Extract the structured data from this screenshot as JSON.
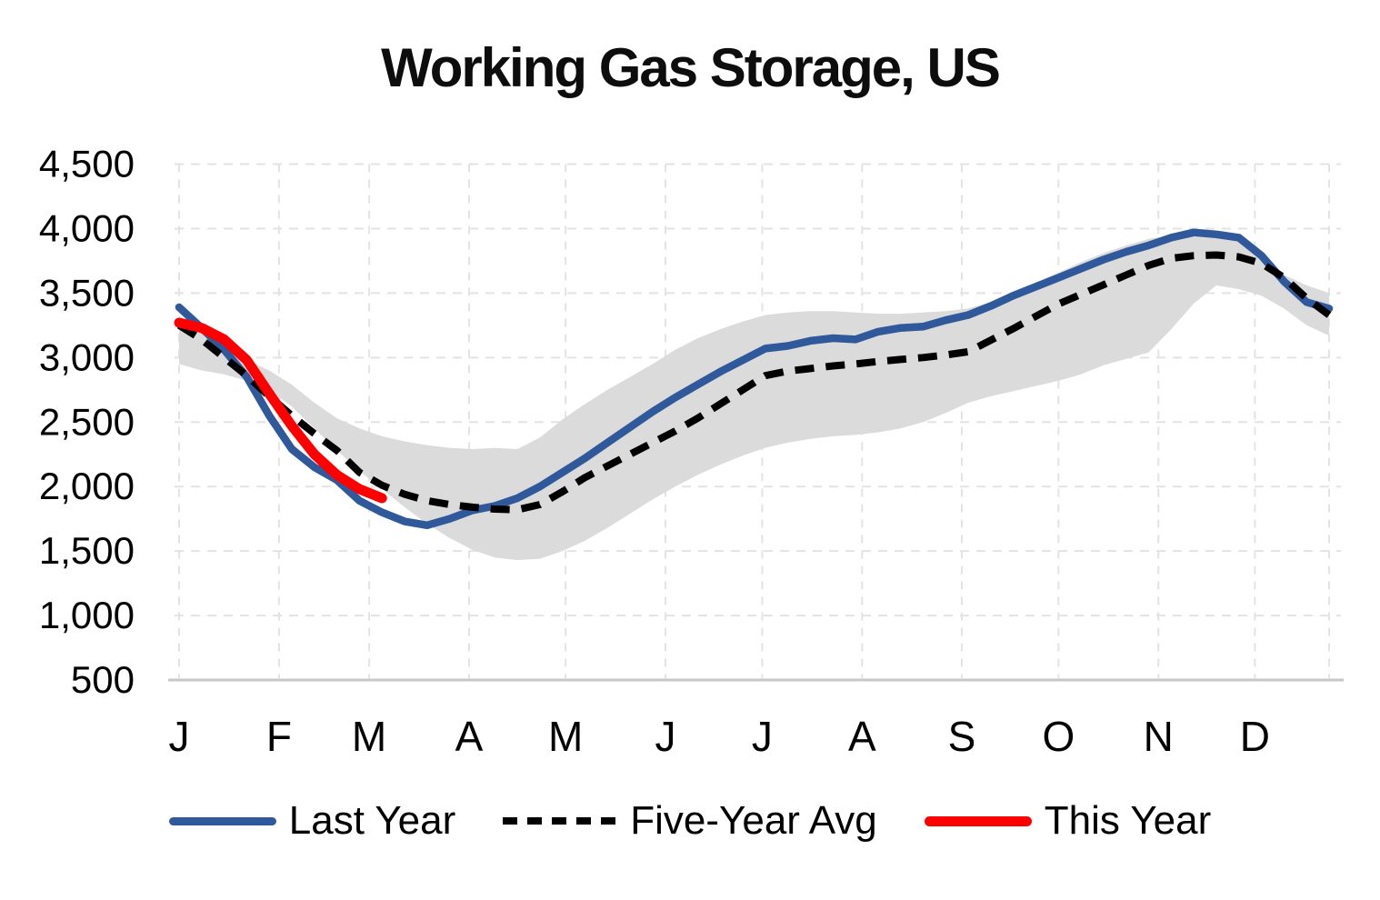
{
  "title": "Working Gas Storage, US",
  "colors": {
    "last_year": "#30599B",
    "five_year_avg": "#000000",
    "this_year": "#FF0000",
    "range_band": "#DBDBDB",
    "gridline": "#E3E3E3",
    "baseline": "#C7C7C7",
    "text": "#000000"
  },
  "legend": {
    "items": [
      {
        "label": "Last Year",
        "color": "#30599B",
        "style": "solid"
      },
      {
        "label": "Five-Year Avg",
        "color": "#000000",
        "style": "dashed"
      },
      {
        "label": "This Year",
        "color": "#FF0000",
        "style": "solid"
      }
    ]
  },
  "chart_data": {
    "type": "line",
    "title": "Working Gas Storage, US",
    "x_unit": "week-of-year",
    "xlabel": "",
    "ylabel": "",
    "ylim": [
      500,
      4500
    ],
    "ytick_values": [
      500,
      1000,
      1500,
      2000,
      2500,
      3000,
      3500,
      4000,
      4500
    ],
    "ytick_labels": [
      "500",
      "1,000",
      "1,500",
      "2,000",
      "2,500",
      "3,000",
      "3,500",
      "4,000",
      "4,500"
    ],
    "month_labels": [
      "J",
      "F",
      "M",
      "A",
      "M",
      "J",
      "J",
      "A",
      "S",
      "O",
      "N",
      "D"
    ],
    "grid": true,
    "legend_position": "bottom",
    "series": [
      {
        "name": "Last Year",
        "style": "solid",
        "color": "#30599B",
        "start_week": 1,
        "values": [
          3390,
          3230,
          3060,
          2850,
          2550,
          2290,
          2150,
          2050,
          1890,
          1800,
          1730,
          1700,
          1750,
          1815,
          1850,
          1910,
          2000,
          2110,
          2220,
          2340,
          2460,
          2580,
          2690,
          2790,
          2890,
          2980,
          3070,
          3090,
          3130,
          3150,
          3140,
          3200,
          3230,
          3240,
          3290,
          3330,
          3400,
          3480,
          3550,
          3620,
          3690,
          3760,
          3820,
          3870,
          3930,
          3970,
          3955,
          3930,
          3790,
          3590,
          3430,
          3380
        ]
      },
      {
        "name": "Five-Year Avg",
        "style": "dashed",
        "color": "#000000",
        "start_week": 1,
        "values": [
          3250,
          3140,
          3000,
          2860,
          2700,
          2550,
          2410,
          2280,
          2110,
          2010,
          1940,
          1890,
          1860,
          1840,
          1825,
          1820,
          1860,
          1960,
          2070,
          2160,
          2250,
          2340,
          2430,
          2530,
          2640,
          2750,
          2860,
          2895,
          2915,
          2935,
          2950,
          2970,
          2985,
          3000,
          3020,
          3045,
          3135,
          3225,
          3320,
          3415,
          3490,
          3565,
          3640,
          3715,
          3770,
          3790,
          3795,
          3780,
          3730,
          3620,
          3460,
          3330
        ]
      },
      {
        "name": "This Year",
        "style": "solid",
        "color": "#FF0000",
        "start_week": 1,
        "values": [
          3270,
          3230,
          3140,
          2980,
          2720,
          2470,
          2250,
          2090,
          1980,
          1910
        ]
      }
    ],
    "range_band": {
      "color": "#DBDBDB",
      "start_week": 1,
      "lower": [
        2950,
        2900,
        2870,
        2820,
        2750,
        2620,
        2450,
        2280,
        2120,
        1980,
        1840,
        1710,
        1600,
        1510,
        1450,
        1430,
        1440,
        1500,
        1580,
        1680,
        1790,
        1900,
        2000,
        2090,
        2170,
        2240,
        2300,
        2340,
        2370,
        2390,
        2400,
        2420,
        2450,
        2500,
        2570,
        2650,
        2700,
        2740,
        2780,
        2820,
        2870,
        2940,
        2990,
        3040,
        3220,
        3420,
        3560,
        3530,
        3480,
        3380,
        3250,
        3170
      ],
      "upper": [
        3320,
        3200,
        3080,
        2980,
        2900,
        2790,
        2650,
        2530,
        2450,
        2390,
        2350,
        2320,
        2300,
        2290,
        2300,
        2290,
        2380,
        2520,
        2640,
        2750,
        2850,
        2950,
        3060,
        3150,
        3220,
        3280,
        3330,
        3350,
        3360,
        3360,
        3350,
        3340,
        3340,
        3350,
        3360,
        3380,
        3430,
        3500,
        3580,
        3660,
        3740,
        3810,
        3870,
        3920,
        3950,
        3960,
        3950,
        3930,
        3800,
        3640,
        3560,
        3500
      ]
    }
  }
}
